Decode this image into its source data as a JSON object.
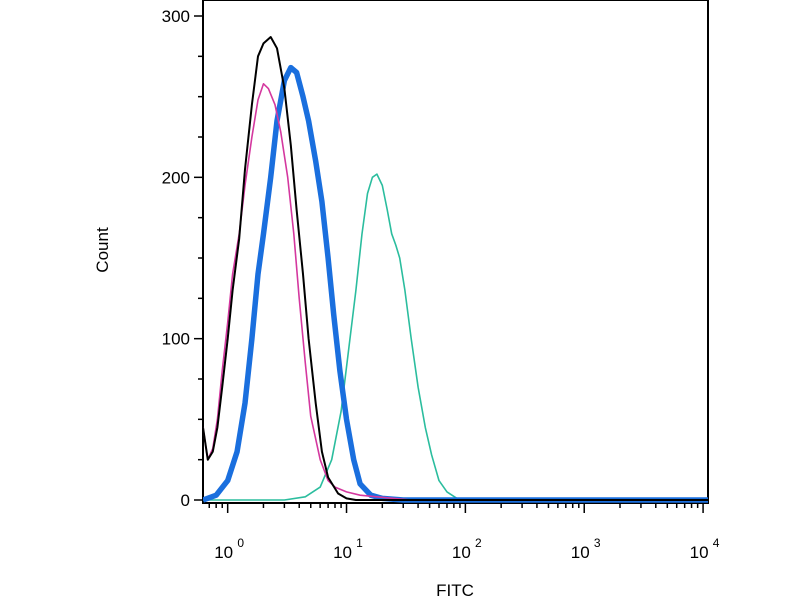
{
  "chart_data": {
    "type": "line",
    "title": "",
    "xlabel": "FITC",
    "ylabel": "Count",
    "x_scale": "log",
    "xlim": [
      0.62,
      11000
    ],
    "ylim": [
      0,
      300
    ],
    "x_ticks": [
      {
        "value": 1,
        "base": "10",
        "exp": "0"
      },
      {
        "value": 10,
        "base": "10",
        "exp": "1"
      },
      {
        "value": 100,
        "base": "10",
        "exp": "2"
      },
      {
        "value": 1000,
        "base": "10",
        "exp": "3"
      },
      {
        "value": 10000,
        "base": "10",
        "exp": "4"
      }
    ],
    "y_ticks": [
      {
        "value": 0,
        "label": "0"
      },
      {
        "value": 100,
        "label": "100"
      },
      {
        "value": 200,
        "label": "200"
      },
      {
        "value": 300,
        "label": "300"
      }
    ],
    "grid": false,
    "legend": "none",
    "series": [
      {
        "color": "#d4389f",
        "points": [
          [
            0.62,
            45
          ],
          [
            0.68,
            25
          ],
          [
            0.75,
            32
          ],
          [
            0.82,
            50
          ],
          [
            0.9,
            80
          ],
          [
            1.0,
            110
          ],
          [
            1.1,
            140
          ],
          [
            1.25,
            165
          ],
          [
            1.4,
            195
          ],
          [
            1.6,
            225
          ],
          [
            1.8,
            248
          ],
          [
            2.0,
            258
          ],
          [
            2.2,
            255
          ],
          [
            2.5,
            245
          ],
          [
            2.8,
            228
          ],
          [
            3.2,
            200
          ],
          [
            3.6,
            165
          ],
          [
            4.0,
            125
          ],
          [
            4.5,
            85
          ],
          [
            5.0,
            52
          ],
          [
            6.0,
            25
          ],
          [
            7.0,
            12
          ],
          [
            8.0,
            8
          ],
          [
            10,
            5
          ],
          [
            13,
            3
          ],
          [
            18,
            2
          ],
          [
            25,
            1
          ],
          [
            35,
            0
          ],
          [
            11000,
            0
          ]
        ]
      },
      {
        "color": "#000000",
        "points": [
          [
            0.62,
            45
          ],
          [
            0.68,
            25
          ],
          [
            0.75,
            30
          ],
          [
            0.82,
            45
          ],
          [
            0.9,
            70
          ],
          [
            1.0,
            100
          ],
          [
            1.1,
            130
          ],
          [
            1.25,
            162
          ],
          [
            1.4,
            205
          ],
          [
            1.6,
            245
          ],
          [
            1.8,
            275
          ],
          [
            2.0,
            283
          ],
          [
            2.3,
            287
          ],
          [
            2.6,
            280
          ],
          [
            3.0,
            255
          ],
          [
            3.4,
            220
          ],
          [
            3.8,
            180
          ],
          [
            4.3,
            140
          ],
          [
            4.8,
            100
          ],
          [
            5.5,
            60
          ],
          [
            6.2,
            30
          ],
          [
            7.0,
            14
          ],
          [
            8.5,
            4
          ],
          [
            10,
            1
          ],
          [
            12,
            0
          ],
          [
            11000,
            0
          ]
        ]
      },
      {
        "color": "#1a6fde",
        "points": [
          [
            0.62,
            0
          ],
          [
            0.8,
            3
          ],
          [
            1.0,
            12
          ],
          [
            1.2,
            30
          ],
          [
            1.4,
            60
          ],
          [
            1.6,
            100
          ],
          [
            1.8,
            140
          ],
          [
            2.0,
            165
          ],
          [
            2.3,
            200
          ],
          [
            2.6,
            235
          ],
          [
            3.0,
            260
          ],
          [
            3.4,
            268
          ],
          [
            3.8,
            265
          ],
          [
            4.3,
            250
          ],
          [
            4.8,
            235
          ],
          [
            5.5,
            210
          ],
          [
            6.2,
            185
          ],
          [
            7.0,
            150
          ],
          [
            7.8,
            115
          ],
          [
            8.8,
            80
          ],
          [
            10,
            50
          ],
          [
            11.5,
            25
          ],
          [
            13,
            10
          ],
          [
            16,
            3
          ],
          [
            20,
            1
          ],
          [
            30,
            0
          ],
          [
            11000,
            0
          ]
        ]
      },
      {
        "color": "#2bbd9e",
        "points": [
          [
            0.62,
            0
          ],
          [
            3.0,
            0
          ],
          [
            4.5,
            2
          ],
          [
            6.0,
            8
          ],
          [
            7.5,
            25
          ],
          [
            9.0,
            55
          ],
          [
            10.5,
            95
          ],
          [
            12,
            130
          ],
          [
            13.5,
            165
          ],
          [
            15,
            190
          ],
          [
            16.5,
            200
          ],
          [
            18,
            202
          ],
          [
            20,
            195
          ],
          [
            22,
            180
          ],
          [
            24,
            165
          ],
          [
            26,
            158
          ],
          [
            28,
            150
          ],
          [
            31,
            130
          ],
          [
            35,
            100
          ],
          [
            40,
            70
          ],
          [
            46,
            45
          ],
          [
            52,
            28
          ],
          [
            60,
            12
          ],
          [
            70,
            5
          ],
          [
            85,
            1
          ],
          [
            100,
            0
          ],
          [
            11000,
            0
          ]
        ]
      }
    ]
  }
}
